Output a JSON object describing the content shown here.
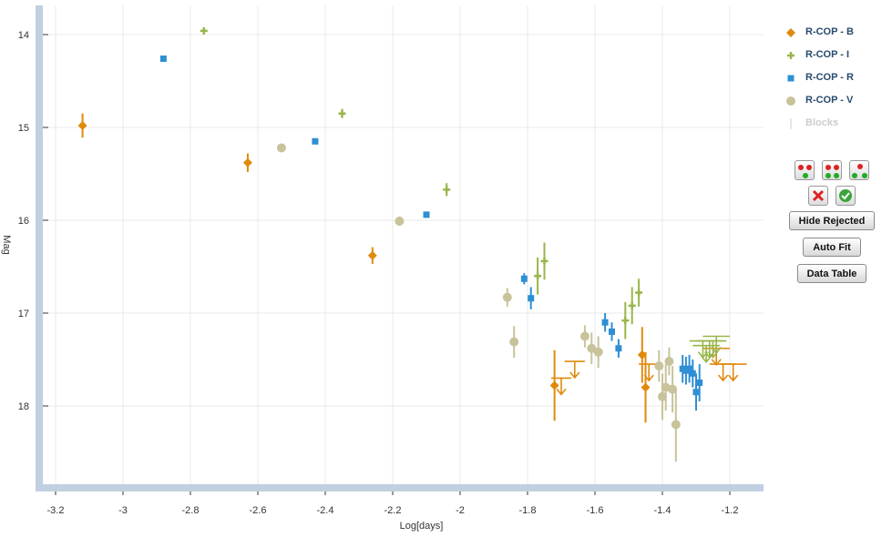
{
  "chart_data": {
    "type": "scatter",
    "xlabel": "Log[days]",
    "ylabel": "Mag",
    "xlim": [
      -3.24,
      -1.12
    ],
    "ylim": [
      18.9,
      13.7
    ],
    "y_inverted": true,
    "grid": true,
    "legend_position": "right",
    "x_ticks": [
      "-3.2",
      "-3",
      "-2.8",
      "-2.6",
      "-2.4",
      "-2.2",
      "-2",
      "-1.8",
      "-1.6",
      "-1.4",
      "-1.2"
    ],
    "x_tick_values": [
      -3.2,
      -3.0,
      -2.8,
      -2.6,
      -2.4,
      -2.2,
      -2.0,
      -1.8,
      -1.6,
      -1.4,
      -1.2
    ],
    "y_ticks": [
      "14",
      "15",
      "16",
      "17",
      "18"
    ],
    "y_tick_values": [
      14,
      15,
      16,
      17,
      18
    ],
    "series": [
      {
        "name": "R-COP - B",
        "color": "#e08a0c",
        "marker": "diamond",
        "points": [
          {
            "x": -3.12,
            "y": 14.98,
            "err": 0.13
          },
          {
            "x": -2.63,
            "y": 15.38,
            "err": 0.1
          },
          {
            "x": -2.26,
            "y": 16.38,
            "err": 0.09
          },
          {
            "x": -1.72,
            "y": 17.78,
            "err": 0.38
          },
          {
            "x": -1.46,
            "y": 17.45,
            "err": 0.3
          },
          {
            "x": -1.45,
            "y": 17.8,
            "err": 0.38
          }
        ],
        "upper_limits": [
          {
            "x": -1.7,
            "y": 17.7,
            "xerr": 0.03
          },
          {
            "x": -1.66,
            "y": 17.52,
            "xerr": 0.03
          },
          {
            "x": -1.44,
            "y": 17.55,
            "xerr": 0.03
          },
          {
            "x": -1.24,
            "y": 17.38,
            "xerr": 0.04
          },
          {
            "x": -1.22,
            "y": 17.55,
            "xerr": 0.04
          },
          {
            "x": -1.19,
            "y": 17.55,
            "xerr": 0.04
          }
        ]
      },
      {
        "name": "R-COP - I",
        "color": "#99b64b",
        "marker": "cross",
        "points": [
          {
            "x": -2.76,
            "y": 13.96,
            "err": 0.04
          },
          {
            "x": -2.35,
            "y": 14.85,
            "err": 0.05
          },
          {
            "x": -2.04,
            "y": 15.67,
            "err": 0.07
          },
          {
            "x": -1.77,
            "y": 16.6,
            "err": 0.2
          },
          {
            "x": -1.75,
            "y": 16.44,
            "err": 0.2
          },
          {
            "x": -1.51,
            "y": 17.08,
            "err": 0.2
          },
          {
            "x": -1.49,
            "y": 16.92,
            "err": 0.2
          },
          {
            "x": -1.47,
            "y": 16.78,
            "err": 0.15
          }
        ],
        "upper_limits": [
          {
            "x": -1.28,
            "y": 17.3,
            "xerr": 0.04
          },
          {
            "x": -1.27,
            "y": 17.35,
            "xerr": 0.04
          },
          {
            "x": -1.26,
            "y": 17.3,
            "xerr": 0.04
          },
          {
            "x": -1.25,
            "y": 17.3,
            "xerr": 0.04
          },
          {
            "x": -1.24,
            "y": 17.25,
            "xerr": 0.04
          }
        ]
      },
      {
        "name": "R-COP - R",
        "color": "#2f8fd4",
        "marker": "square",
        "points": [
          {
            "x": -2.88,
            "y": 14.26,
            "err": 0.03
          },
          {
            "x": -2.43,
            "y": 15.15,
            "err": 0.03
          },
          {
            "x": -2.1,
            "y": 15.94,
            "err": 0.03
          },
          {
            "x": -1.81,
            "y": 16.63,
            "err": 0.06
          },
          {
            "x": -1.79,
            "y": 16.84,
            "err": 0.12
          },
          {
            "x": -1.57,
            "y": 17.1,
            "err": 0.1
          },
          {
            "x": -1.55,
            "y": 17.2,
            "err": 0.1
          },
          {
            "x": -1.53,
            "y": 17.38,
            "err": 0.1
          },
          {
            "x": -1.34,
            "y": 17.6,
            "err": 0.15
          },
          {
            "x": -1.33,
            "y": 17.62,
            "err": 0.15
          },
          {
            "x": -1.32,
            "y": 17.6,
            "err": 0.15
          },
          {
            "x": -1.31,
            "y": 17.65,
            "err": 0.15
          },
          {
            "x": -1.3,
            "y": 17.85,
            "err": 0.2
          },
          {
            "x": -1.29,
            "y": 17.75,
            "err": 0.2
          }
        ]
      },
      {
        "name": "R-COP - V",
        "color": "#c8c39a",
        "marker": "circle",
        "points": [
          {
            "x": -2.53,
            "y": 15.22,
            "err": 0.03
          },
          {
            "x": -2.18,
            "y": 16.01,
            "err": 0.05
          },
          {
            "x": -1.86,
            "y": 16.83,
            "err": 0.1
          },
          {
            "x": -1.84,
            "y": 17.31,
            "err": 0.17
          },
          {
            "x": -1.63,
            "y": 17.25,
            "err": 0.12
          },
          {
            "x": -1.61,
            "y": 17.38,
            "err": 0.17
          },
          {
            "x": -1.59,
            "y": 17.42,
            "err": 0.17
          },
          {
            "x": -1.41,
            "y": 17.57,
            "err": 0.17
          },
          {
            "x": -1.4,
            "y": 17.9,
            "err": 0.25
          },
          {
            "x": -1.39,
            "y": 17.8,
            "err": 0.25
          },
          {
            "x": -1.38,
            "y": 17.52,
            "err": 0.15
          },
          {
            "x": -1.37,
            "y": 17.82,
            "err": 0.25
          },
          {
            "x": -1.36,
            "y": 18.2,
            "err": 0.4
          }
        ]
      },
      {
        "name": "Blocks",
        "color": "#cccccc",
        "marker": "line",
        "hidden": true,
        "points": []
      }
    ]
  },
  "tools": {
    "hide_rejected": "Hide Rejected",
    "auto_fit": "Auto Fit",
    "data_table": "Data Table"
  }
}
